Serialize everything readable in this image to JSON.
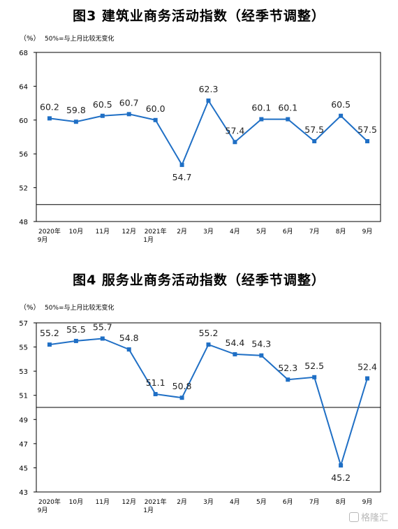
{
  "charts": [
    {
      "title": "图3  建筑业商务活动指数（经季节调整）",
      "unit": "（%）",
      "note": "50%=与上月比较无变化"
    },
    {
      "title": "图4  服务业商务活动指数（经季节调整）",
      "unit": "（%）",
      "note": "50%=与上月比较无变化"
    }
  ],
  "watermark": "格隆汇",
  "chart_data": [
    {
      "type": "line",
      "title": "图3  建筑业商务活动指数（经季节调整）",
      "categories": [
        [
          "2020年",
          "9月"
        ],
        [
          "10月"
        ],
        [
          "11月"
        ],
        [
          "12月"
        ],
        [
          "2021年",
          "1月"
        ],
        [
          "2月"
        ],
        [
          "3月"
        ],
        [
          "4月"
        ],
        [
          "5月"
        ],
        [
          "6月"
        ],
        [
          "7月"
        ],
        [
          "8月"
        ],
        [
          "9月"
        ]
      ],
      "values": [
        60.2,
        59.8,
        60.5,
        60.7,
        60.0,
        54.7,
        62.3,
        57.4,
        60.1,
        60.1,
        57.5,
        60.5,
        57.5
      ],
      "ylim": [
        48,
        68
      ],
      "yticks": [
        48,
        52,
        56,
        60,
        64,
        68
      ],
      "reference_line": 50,
      "color": "#1f6fc5"
    },
    {
      "type": "line",
      "title": "图4  服务业商务活动指数（经季节调整）",
      "categories": [
        [
          "2020年",
          "9月"
        ],
        [
          "10月"
        ],
        [
          "11月"
        ],
        [
          "12月"
        ],
        [
          "2021年",
          "1月"
        ],
        [
          "2月"
        ],
        [
          "3月"
        ],
        [
          "4月"
        ],
        [
          "5月"
        ],
        [
          "6月"
        ],
        [
          "7月"
        ],
        [
          "8月"
        ],
        [
          "9月"
        ]
      ],
      "values": [
        55.2,
        55.5,
        55.7,
        54.8,
        51.1,
        50.8,
        55.2,
        54.4,
        54.3,
        52.3,
        52.5,
        45.2,
        52.4
      ],
      "ylim": [
        43,
        57
      ],
      "yticks": [
        43,
        45,
        47,
        49,
        51,
        53,
        55,
        57
      ],
      "reference_line": 50,
      "color": "#1f6fc5"
    }
  ]
}
